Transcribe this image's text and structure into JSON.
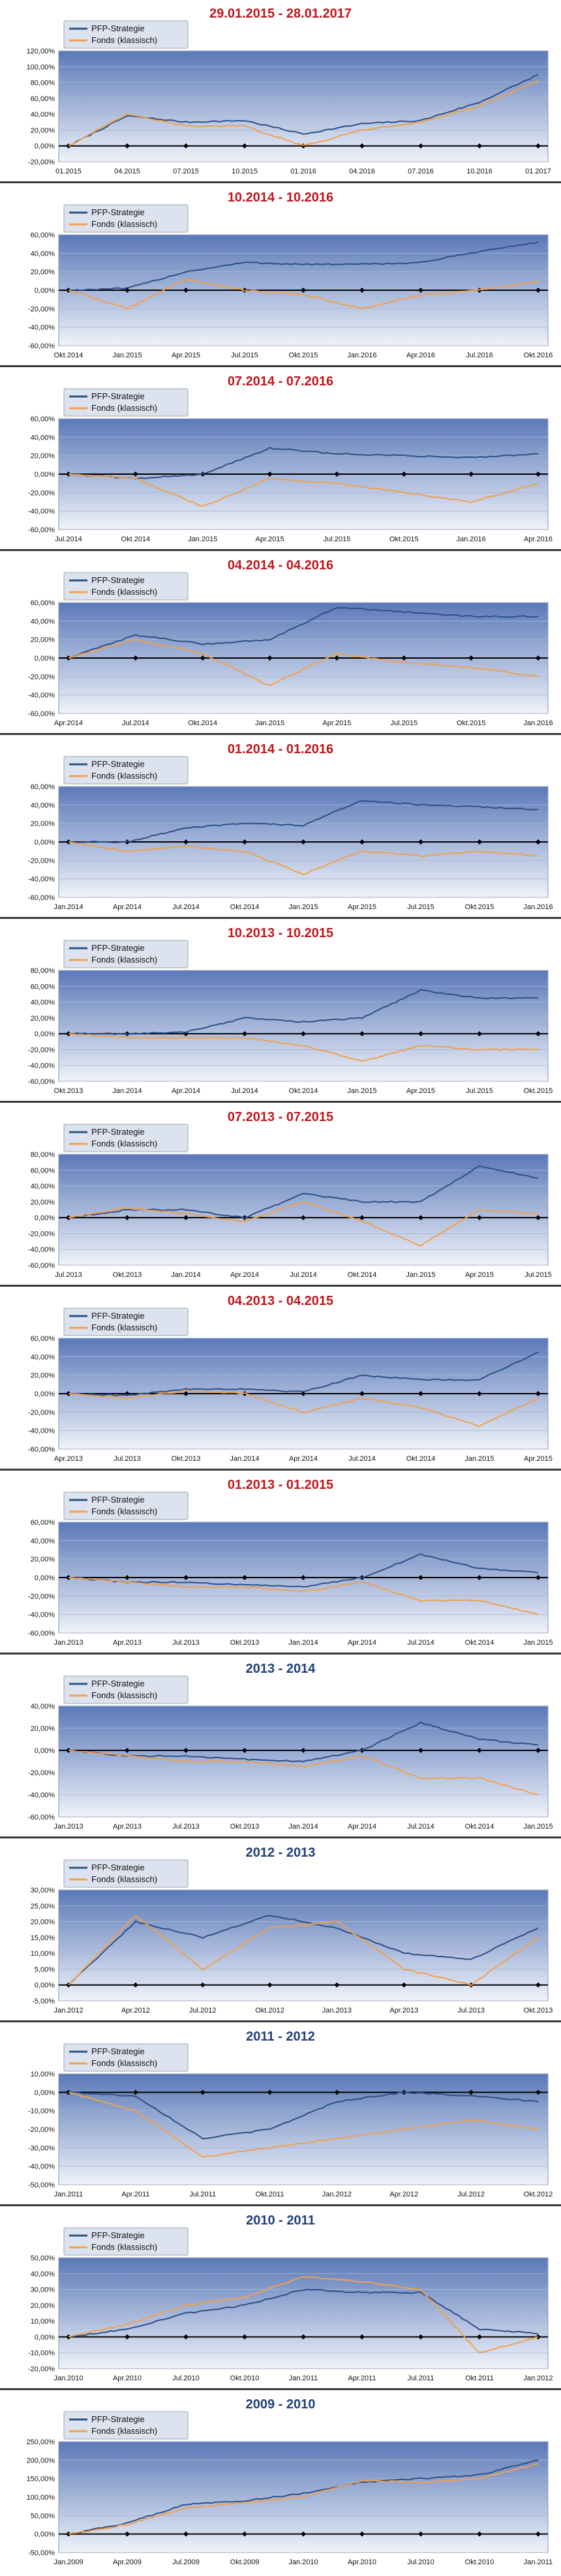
{
  "colors": {
    "pfp": "#2e4f86",
    "fonds": "#f0a050",
    "title_red": "#c0161c",
    "title_blue": "#1f3f7a"
  },
  "legend": {
    "pfp": "PFP-Strategie",
    "fonds": "Fonds (klassisch)"
  },
  "chart_data": [
    {
      "type": "line",
      "title": "29.01.2015 - 28.01.2017",
      "title_color": "red",
      "ylim": [
        -20,
        120
      ],
      "yticks": [
        "120,00%",
        "100,00%",
        "80,00%",
        "60,00%",
        "40,00%",
        "20,00%",
        "0,00%",
        "-20,00%"
      ],
      "x": [
        "01.2015",
        "04.2015",
        "07.2015",
        "10.2015",
        "01.2016",
        "04.2016",
        "07.2016",
        "10.2016",
        "01.2017"
      ],
      "legend_position": "top-left",
      "series": [
        {
          "name": "PFP-Strategie",
          "values": [
            0,
            38,
            30,
            32,
            15,
            28,
            32,
            55,
            90
          ]
        },
        {
          "name": "Fonds (klassisch)",
          "values": [
            0,
            40,
            25,
            25,
            0,
            20,
            30,
            50,
            82
          ]
        }
      ]
    },
    {
      "type": "line",
      "title": "10.2014 - 10.2016",
      "title_color": "red",
      "ylim": [
        -60,
        60
      ],
      "yticks": [
        "60,00%",
        "40,00%",
        "20,00%",
        "0,00%",
        "-20,00%",
        "-40,00%",
        "-60,00%"
      ],
      "x": [
        "Okt.2014",
        "Jan.2015",
        "Apr.2015",
        "Jul.2015",
        "Okt.2015",
        "Jan.2016",
        "Apr.2016",
        "Jul.2016",
        "Okt.2016"
      ],
      "legend_position": "top-left",
      "series": [
        {
          "name": "PFP-Strategie",
          "values": [
            0,
            2,
            20,
            30,
            28,
            28,
            30,
            42,
            52
          ]
        },
        {
          "name": "Fonds (klassisch)",
          "values": [
            0,
            -20,
            12,
            0,
            -5,
            -20,
            -5,
            0,
            10
          ]
        }
      ]
    },
    {
      "type": "line",
      "title": "07.2014 - 07.2016",
      "title_color": "red",
      "ylim": [
        -60,
        60
      ],
      "yticks": [
        "60,00%",
        "40,00%",
        "20,00%",
        "0,00%",
        "-20,00%",
        "-40,00%",
        "-60,00%"
      ],
      "x": [
        "Jul.2014",
        "Okt.2014",
        "Jan.2015",
        "Apr.2015",
        "Jul.2015",
        "Okt.2015",
        "Jan.2016",
        "Apr.2016"
      ],
      "legend_position": "top-left",
      "series": [
        {
          "name": "PFP-Strategie",
          "values": [
            0,
            -5,
            0,
            28,
            22,
            20,
            18,
            22
          ]
        },
        {
          "name": "Fonds (klassisch)",
          "values": [
            0,
            -5,
            -35,
            -5,
            -10,
            -20,
            -30,
            -10
          ]
        }
      ]
    },
    {
      "type": "line",
      "title": "04.2014 - 04.2016",
      "title_color": "red",
      "ylim": [
        -60,
        60
      ],
      "yticks": [
        "60,00%",
        "40,00%",
        "20,00%",
        "0,00%",
        "-20,00%",
        "-40,00%",
        "-60,00%"
      ],
      "x": [
        "Apr.2014",
        "Jul.2014",
        "Okt.2014",
        "Jan.2015",
        "Apr.2015",
        "Jul.2015",
        "Okt.2015",
        "Jan.2016"
      ],
      "legend_position": "top-left",
      "series": [
        {
          "name": "PFP-Strategie",
          "values": [
            0,
            25,
            15,
            20,
            55,
            50,
            45,
            45
          ]
        },
        {
          "name": "Fonds (klassisch)",
          "values": [
            0,
            20,
            5,
            -30,
            5,
            -5,
            -10,
            -20
          ]
        }
      ]
    },
    {
      "type": "line",
      "title": "01.2014 - 01.2016",
      "title_color": "red",
      "ylim": [
        -60,
        60
      ],
      "yticks": [
        "60,00%",
        "40,00%",
        "20,00%",
        "0,00%",
        "-20,00%",
        "-40,00%",
        "-60,00%"
      ],
      "x": [
        "Jan.2014",
        "Apr.2014",
        "Jul.2014",
        "Okt.2014",
        "Jan.2015",
        "Apr.2015",
        "Jul.2015",
        "Okt.2015",
        "Jan.2016"
      ],
      "legend_position": "top-left",
      "series": [
        {
          "name": "PFP-Strategie",
          "values": [
            0,
            0,
            15,
            20,
            18,
            45,
            40,
            38,
            35
          ]
        },
        {
          "name": "Fonds (klassisch)",
          "values": [
            0,
            -10,
            -5,
            -10,
            -35,
            -10,
            -15,
            -10,
            -15
          ]
        }
      ]
    },
    {
      "type": "line",
      "title": "10.2013 - 10.2015",
      "title_color": "red",
      "ylim": [
        -60,
        80
      ],
      "yticks": [
        "80,00%",
        "60,00%",
        "40,00%",
        "20,00%",
        "0,00%",
        "-20,00%",
        "-40,00%",
        "-60,00%"
      ],
      "x": [
        "Okt.2013",
        "Jan.2014",
        "Apr.2014",
        "Jul.2014",
        "Okt.2014",
        "Jan.2015",
        "Apr.2015",
        "Jul.2015",
        "Okt.2015"
      ],
      "legend_position": "top-left",
      "series": [
        {
          "name": "PFP-Strategie",
          "values": [
            0,
            0,
            2,
            20,
            15,
            20,
            55,
            45,
            45
          ]
        },
        {
          "name": "Fonds (klassisch)",
          "values": [
            0,
            -5,
            -5,
            -5,
            -15,
            -35,
            -15,
            -20,
            -20
          ]
        }
      ]
    },
    {
      "type": "line",
      "title": "07.2013 - 07.2015",
      "title_color": "red",
      "ylim": [
        -60,
        80
      ],
      "yticks": [
        "80,00%",
        "60,00%",
        "40,00%",
        "20,00%",
        "0,00%",
        "-20,00%",
        "-40,00%",
        "-60,00%"
      ],
      "x": [
        "Jul.2013",
        "Okt.2013",
        "Jan.2014",
        "Apr.2014",
        "Jul.2014",
        "Okt.2014",
        "Jan.2015",
        "Apr.2015",
        "Jul.2015"
      ],
      "legend_position": "top-left",
      "series": [
        {
          "name": "PFP-Strategie",
          "values": [
            0,
            10,
            10,
            0,
            30,
            20,
            20,
            65,
            50
          ]
        },
        {
          "name": "Fonds (klassisch)",
          "values": [
            0,
            12,
            5,
            -5,
            20,
            -5,
            -35,
            10,
            5
          ]
        }
      ]
    },
    {
      "type": "line",
      "title": "04.2013 - 04.2015",
      "title_color": "red",
      "ylim": [
        -60,
        60
      ],
      "yticks": [
        "60,00%",
        "40,00%",
        "20,00%",
        "0,00%",
        "-20,00%",
        "-40,00%",
        "-60,00%"
      ],
      "x": [
        "Apr.2013",
        "Jul.2013",
        "Okt.2013",
        "Jan.2014",
        "Apr.2014",
        "Jul.2014",
        "Okt.2014",
        "Jan.2015",
        "Apr.2015"
      ],
      "legend_position": "top-left",
      "series": [
        {
          "name": "PFP-Strategie",
          "values": [
            0,
            -2,
            5,
            5,
            2,
            20,
            15,
            15,
            45
          ]
        },
        {
          "name": "Fonds (klassisch)",
          "values": [
            0,
            -5,
            3,
            0,
            -20,
            -5,
            -15,
            -35,
            -5
          ]
        }
      ]
    },
    {
      "type": "line",
      "title": "01.2013 - 01.2015",
      "title_color": "red",
      "ylim": [
        -60,
        60
      ],
      "yticks": [
        "60,00%",
        "40,00%",
        "20,00%",
        "0,00%",
        "-20,00%",
        "-40,00%",
        "-60,00%"
      ],
      "x": [
        "Jan.2013",
        "Apr.2013",
        "Jul.2013",
        "Okt.2013",
        "Jan.2014",
        "Apr.2014",
        "Jul.2014",
        "Okt.2014",
        "Jan.2015"
      ],
      "legend_position": "top-left",
      "series": [
        {
          "name": "PFP-Strategie",
          "values": [
            0,
            -5,
            -5,
            -8,
            -10,
            0,
            25,
            10,
            5
          ]
        },
        {
          "name": "Fonds (klassisch)",
          "values": [
            0,
            -5,
            -10,
            -10,
            -15,
            -5,
            -25,
            -25,
            -40
          ]
        }
      ]
    },
    {
      "type": "line",
      "title": "2013 - 2014",
      "title_color": "blue",
      "ylim": [
        -60,
        40
      ],
      "yticks": [
        "40,00%",
        "20,00%",
        "0,00%",
        "-20,00%",
        "-40,00%",
        "-60,00%"
      ],
      "x": [
        "Jan.2013",
        "Apr.2013",
        "Jul.2013",
        "Okt.2013",
        "Jan.2014",
        "Apr.2014",
        "Jul.2014",
        "Okt.2014",
        "Jan.2015"
      ],
      "legend_position": "top-left",
      "series": [
        {
          "name": "PFP-Strategie",
          "values": [
            0,
            -5,
            -5,
            -8,
            -10,
            0,
            25,
            10,
            5
          ]
        },
        {
          "name": "Fonds (klassisch)",
          "values": [
            0,
            -5,
            -10,
            -10,
            -15,
            -5,
            -25,
            -25,
            -40
          ]
        }
      ]
    },
    {
      "type": "line",
      "title": "2012 - 2013",
      "title_color": "blue",
      "ylim": [
        -5,
        30
      ],
      "yticks": [
        "30,00%",
        "25,00%",
        "20,00%",
        "15,00%",
        "10,00%",
        "5,00%",
        "0,00%",
        "-5,00%"
      ],
      "x": [
        "Jan.2012",
        "Apr.2012",
        "Jul.2012",
        "Okt.2012",
        "Jan.2013",
        "Apr.2013",
        "Jul.2013",
        "Okt.2013"
      ],
      "legend_position": "top-left",
      "series": [
        {
          "name": "PFP-Strategie",
          "values": [
            0,
            20,
            15,
            22,
            18,
            10,
            8,
            18
          ]
        },
        {
          "name": "Fonds (klassisch)",
          "values": [
            0,
            22,
            5,
            18,
            20,
            5,
            0,
            15
          ]
        }
      ]
    },
    {
      "type": "line",
      "title": "2011 - 2012",
      "title_color": "blue",
      "ylim": [
        -50,
        10
      ],
      "yticks": [
        "10,00%",
        "0,00%",
        "-10,00%",
        "-20,00%",
        "-30,00%",
        "-40,00%",
        "-50,00%"
      ],
      "x": [
        "Jan.2011",
        "Apr.2011",
        "Jul.2011",
        "Okt.2011",
        "Jan.2012",
        "Apr.2012",
        "Jul.2012",
        "Okt.2012"
      ],
      "legend_position": "top-left",
      "series": [
        {
          "name": "PFP-Strategie",
          "values": [
            0,
            -2,
            -25,
            -20,
            -5,
            0,
            -2,
            -5
          ]
        },
        {
          "name": "Fonds (klassisch)",
          "values": [
            0,
            -10,
            -35,
            -30,
            -25,
            -20,
            -15,
            -20
          ]
        }
      ]
    },
    {
      "type": "line",
      "title": "2010 - 2011",
      "title_color": "blue",
      "ylim": [
        -20,
        50
      ],
      "yticks": [
        "50,00%",
        "40,00%",
        "30,00%",
        "20,00%",
        "10,00%",
        "0,00%",
        "-10,00%",
        "-20,00%"
      ],
      "x": [
        "Jan.2010",
        "Apr.2010",
        "Jul.2010",
        "Okt.2010",
        "Jan.2011",
        "Apr.2011",
        "Jul.2011",
        "Okt.2011",
        "Jan.2012"
      ],
      "legend_position": "top-left",
      "series": [
        {
          "name": "PFP-Strategie",
          "values": [
            0,
            5,
            15,
            20,
            30,
            28,
            28,
            5,
            2
          ]
        },
        {
          "name": "Fonds (klassisch)",
          "values": [
            0,
            8,
            20,
            25,
            38,
            35,
            30,
            -10,
            0
          ]
        }
      ]
    },
    {
      "type": "line",
      "title": "2009 - 2010",
      "title_color": "blue",
      "ylim": [
        -50,
        250
      ],
      "yticks": [
        "250,00%",
        "200,00%",
        "150,00%",
        "100,00%",
        "50,00%",
        "0,00%",
        "-50,00%"
      ],
      "x": [
        "Jan.2009",
        "Apr.2009",
        "Jul.2009",
        "Okt.2009",
        "Jan.2010",
        "Apr.2010",
        "Jul.2010",
        "Okt.2010",
        "Jan.2011"
      ],
      "legend_position": "top-left",
      "series": [
        {
          "name": "PFP-Strategie",
          "values": [
            0,
            30,
            80,
            90,
            110,
            140,
            150,
            160,
            200
          ]
        },
        {
          "name": "Fonds (klassisch)",
          "values": [
            0,
            25,
            70,
            85,
            100,
            145,
            140,
            150,
            190
          ]
        }
      ]
    }
  ]
}
